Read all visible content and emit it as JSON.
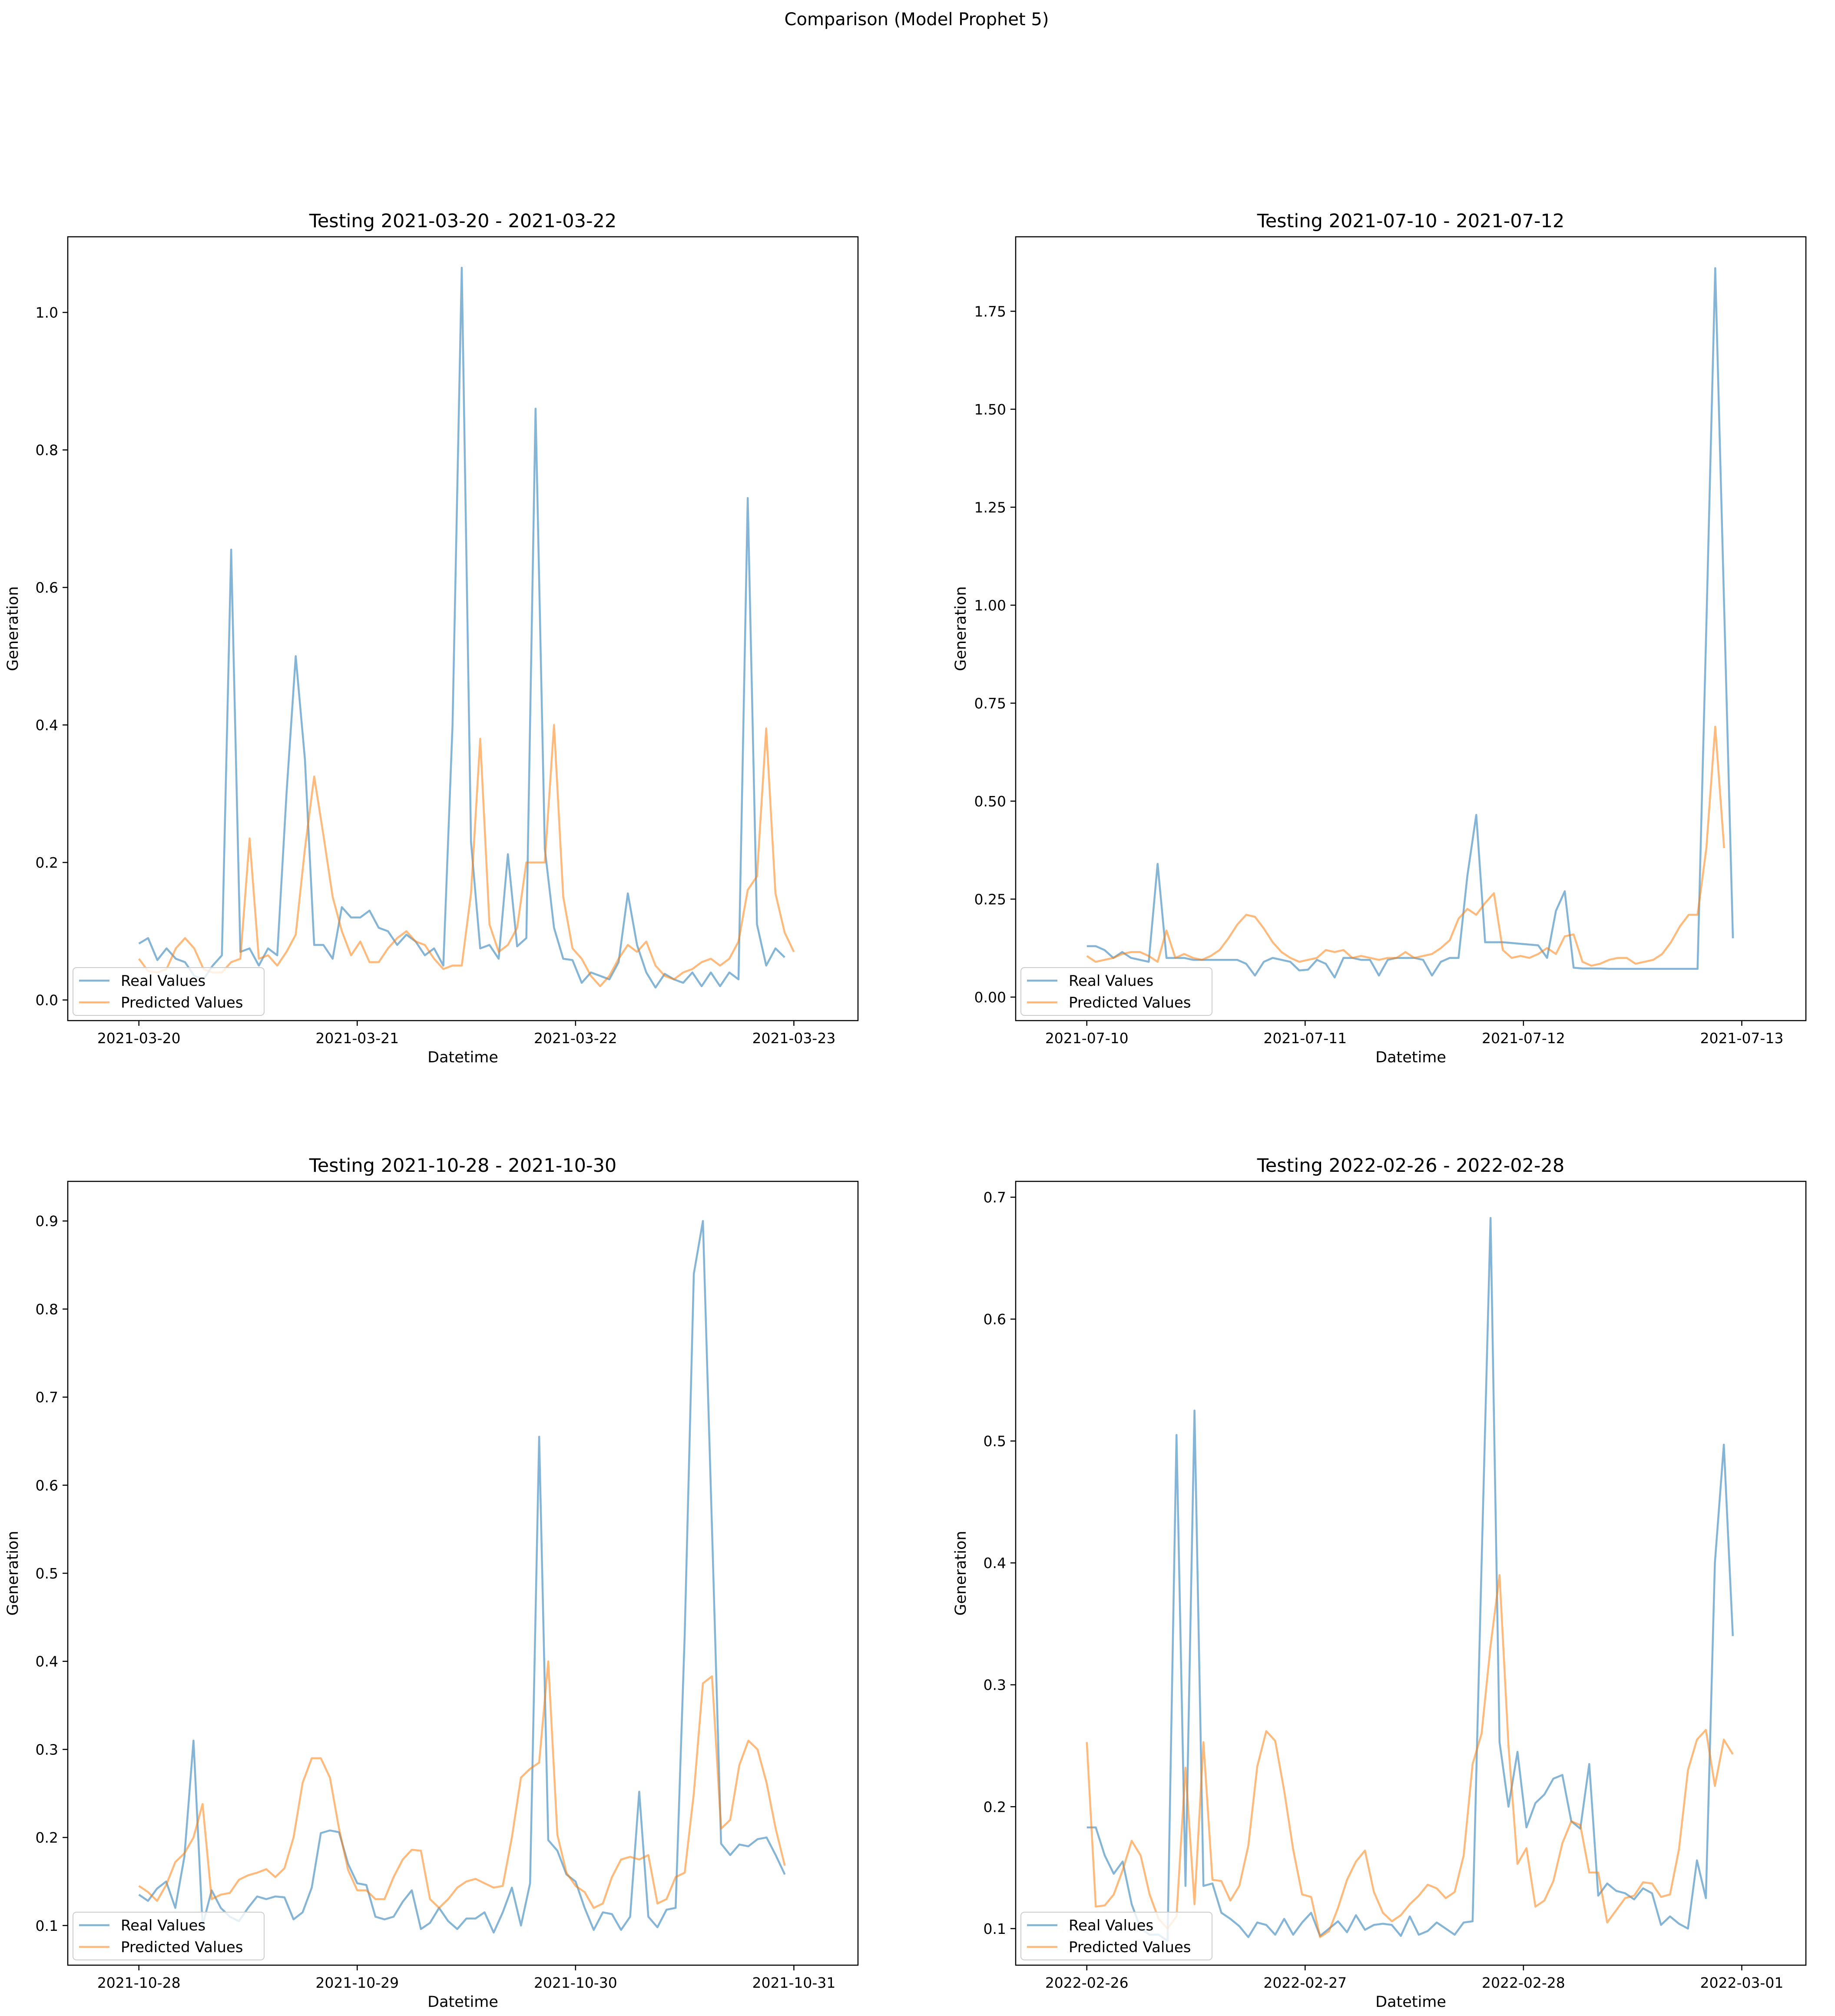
{
  "figure": {
    "suptitle": "Comparison (Model Prophet 5)",
    "colors": {
      "real": "#1f77b4",
      "predicted": "#ff7f0e"
    }
  },
  "chart_data": [
    {
      "type": "line",
      "title": "Testing 2021-03-20 - 2021-03-22",
      "xlabel": "Datetime",
      "ylabel": "Generation",
      "x_start": "2021-03-20",
      "x_end": "2021-03-23",
      "xticks": [
        "2021-03-20",
        "2021-03-21",
        "2021-03-22",
        "2021-03-23"
      ],
      "ylim": [
        -0.03,
        1.11
      ],
      "yticks": [
        "0.0",
        "0.2",
        "0.4",
        "0.6",
        "0.8",
        "1.0"
      ],
      "grid": false,
      "legend": "lower-left",
      "legend_entries": [
        "Real Values",
        "Predicted Values"
      ],
      "series": [
        {
          "name": "Real Values",
          "values": [
            0.082,
            0.09,
            0.058,
            0.075,
            0.06,
            0.055,
            0.035,
            0.03,
            0.05,
            0.065,
            0.655,
            0.07,
            0.075,
            0.05,
            0.075,
            0.065,
            0.3,
            0.5,
            0.35,
            0.08,
            0.08,
            0.06,
            0.135,
            0.12,
            0.12,
            0.13,
            0.105,
            0.1,
            0.08,
            0.095,
            0.085,
            0.065,
            0.075,
            0.05,
            0.4,
            1.065,
            0.23,
            0.075,
            0.08,
            0.06,
            0.212,
            0.078,
            0.09,
            0.86,
            0.22,
            0.105,
            0.06,
            0.058,
            0.025,
            0.04,
            0.035,
            0.03,
            0.055,
            0.155,
            0.08,
            0.04,
            0.018,
            0.038,
            0.03,
            0.025,
            0.04,
            0.02,
            0.04,
            0.02,
            0.04,
            0.03,
            0.73,
            0.11,
            0.05,
            0.075,
            0.062
          ]
        },
        {
          "name": "Predicted Values",
          "values": [
            0.06,
            0.042,
            0.04,
            0.045,
            0.075,
            0.09,
            0.075,
            0.045,
            0.04,
            0.04,
            0.055,
            0.06,
            0.235,
            0.06,
            0.065,
            0.05,
            0.07,
            0.095,
            0.22,
            0.325,
            0.24,
            0.15,
            0.1,
            0.065,
            0.085,
            0.055,
            0.055,
            0.075,
            0.09,
            0.1,
            0.085,
            0.08,
            0.06,
            0.045,
            0.05,
            0.05,
            0.155,
            0.38,
            0.11,
            0.07,
            0.08,
            0.105,
            0.2,
            0.2,
            0.2,
            0.4,
            0.15,
            0.075,
            0.06,
            0.035,
            0.02,
            0.035,
            0.06,
            0.08,
            0.07,
            0.085,
            0.05,
            0.035,
            0.03,
            0.04,
            0.045,
            0.055,
            0.06,
            0.05,
            0.06,
            0.085,
            0.16,
            0.18,
            0.395,
            0.155,
            0.098,
            0.07
          ]
        }
      ]
    },
    {
      "type": "line",
      "title": "Testing 2021-07-10 - 2021-07-12",
      "xlabel": "Datetime",
      "ylabel": "Generation",
      "x_start": "2021-07-10",
      "x_end": "2021-07-13",
      "xticks": [
        "2021-07-10",
        "2021-07-11",
        "2021-07-12",
        "2021-07-13"
      ],
      "ylim": [
        -0.06,
        1.94
      ],
      "yticks": [
        "0.00",
        "0.25",
        "0.50",
        "0.75",
        "1.00",
        "1.25",
        "1.50",
        "1.75"
      ],
      "grid": false,
      "legend": "lower-left",
      "legend_entries": [
        "Real Values",
        "Predicted Values"
      ],
      "series": [
        {
          "name": "Real Values",
          "values": [
            0.13,
            0.13,
            0.12,
            0.1,
            0.115,
            0.1,
            0.095,
            0.09,
            0.34,
            0.1,
            0.1,
            0.1,
            0.095,
            0.095,
            0.095,
            0.095,
            0.095,
            0.095,
            0.085,
            0.055,
            0.09,
            0.1,
            0.095,
            0.09,
            0.068,
            0.07,
            0.095,
            0.085,
            0.05,
            0.1,
            0.1,
            0.095,
            0.095,
            0.055,
            0.095,
            0.1,
            0.1,
            0.1,
            0.095,
            0.055,
            0.09,
            0.1,
            0.1,
            0.31,
            0.465,
            0.14,
            0.14,
            0.14,
            0.138,
            0.136,
            0.134,
            0.132,
            0.1,
            0.22,
            0.27,
            0.075,
            0.073,
            0.073,
            0.073,
            0.072,
            0.072,
            0.072,
            0.072,
            0.072,
            0.072,
            0.072,
            0.072,
            0.072,
            0.072,
            0.072,
            0.95,
            1.86,
            1.0,
            0.15
          ]
        },
        {
          "name": "Predicted Values",
          "values": [
            0.105,
            0.09,
            0.095,
            0.1,
            0.11,
            0.115,
            0.115,
            0.105,
            0.09,
            0.17,
            0.1,
            0.11,
            0.1,
            0.095,
            0.105,
            0.12,
            0.15,
            0.185,
            0.21,
            0.205,
            0.175,
            0.14,
            0.115,
            0.1,
            0.09,
            0.095,
            0.1,
            0.12,
            0.115,
            0.12,
            0.1,
            0.105,
            0.1,
            0.095,
            0.1,
            0.1,
            0.115,
            0.1,
            0.105,
            0.11,
            0.125,
            0.145,
            0.2,
            0.225,
            0.21,
            0.24,
            0.265,
            0.12,
            0.1,
            0.105,
            0.1,
            0.11,
            0.125,
            0.11,
            0.155,
            0.16,
            0.09,
            0.08,
            0.085,
            0.095,
            0.1,
            0.1,
            0.085,
            0.09,
            0.095,
            0.11,
            0.14,
            0.18,
            0.21,
            0.21,
            0.38,
            0.69,
            0.38
          ]
        }
      ]
    },
    {
      "type": "line",
      "title": "Testing 2021-10-28 - 2021-10-30",
      "xlabel": "Datetime",
      "ylabel": "Generation",
      "x_start": "2021-10-28",
      "x_end": "2021-10-31",
      "xticks": [
        "2021-10-28",
        "2021-10-29",
        "2021-10-30",
        "2021-10-31"
      ],
      "ylim": [
        0.055,
        0.945
      ],
      "yticks": [
        "0.1",
        "0.2",
        "0.3",
        "0.4",
        "0.5",
        "0.6",
        "0.7",
        "0.8",
        "0.9"
      ],
      "grid": false,
      "legend": "lower-left",
      "legend_entries": [
        "Real Values",
        "Predicted Values"
      ],
      "series": [
        {
          "name": "Real Values",
          "values": [
            0.135,
            0.128,
            0.142,
            0.15,
            0.12,
            0.178,
            0.31,
            0.1,
            0.14,
            0.12,
            0.11,
            0.105,
            0.12,
            0.133,
            0.13,
            0.133,
            0.132,
            0.107,
            0.115,
            0.143,
            0.205,
            0.208,
            0.206,
            0.17,
            0.148,
            0.146,
            0.11,
            0.107,
            0.11,
            0.127,
            0.14,
            0.096,
            0.103,
            0.12,
            0.105,
            0.096,
            0.108,
            0.108,
            0.115,
            0.092,
            0.115,
            0.143,
            0.1,
            0.148,
            0.655,
            0.197,
            0.185,
            0.158,
            0.15,
            0.12,
            0.095,
            0.115,
            0.113,
            0.095,
            0.11,
            0.252,
            0.11,
            0.098,
            0.118,
            0.12,
            0.43,
            0.84,
            0.9,
            0.55,
            0.193,
            0.18,
            0.192,
            0.19,
            0.198,
            0.2,
            0.18,
            0.158
          ]
        },
        {
          "name": "Predicted Values",
          "values": [
            0.145,
            0.138,
            0.128,
            0.146,
            0.172,
            0.182,
            0.2,
            0.238,
            0.13,
            0.135,
            0.137,
            0.152,
            0.157,
            0.16,
            0.164,
            0.155,
            0.165,
            0.2,
            0.262,
            0.29,
            0.29,
            0.268,
            0.21,
            0.163,
            0.14,
            0.14,
            0.13,
            0.13,
            0.155,
            0.175,
            0.186,
            0.185,
            0.13,
            0.12,
            0.13,
            0.143,
            0.15,
            0.153,
            0.148,
            0.143,
            0.145,
            0.2,
            0.268,
            0.278,
            0.285,
            0.4,
            0.203,
            0.16,
            0.145,
            0.138,
            0.12,
            0.125,
            0.155,
            0.175,
            0.178,
            0.175,
            0.18,
            0.125,
            0.13,
            0.155,
            0.16,
            0.25,
            0.375,
            0.383,
            0.21,
            0.22,
            0.282,
            0.31,
            0.3,
            0.262,
            0.21,
            0.168
          ]
        }
      ]
    },
    {
      "type": "line",
      "title": "Testing 2022-02-26 - 2022-02-28",
      "xlabel": "Datetime",
      "ylabel": "Generation",
      "x_start": "2022-02-26",
      "x_end": "2022-03-01",
      "xticks": [
        "2022-02-26",
        "2022-02-27",
        "2022-02-28",
        "2022-03-01"
      ],
      "ylim": [
        0.07,
        0.713
      ],
      "yticks": [
        "0.1",
        "0.2",
        "0.3",
        "0.4",
        "0.5",
        "0.6",
        "0.7"
      ],
      "grid": false,
      "legend": "lower-left",
      "legend_entries": [
        "Real Values",
        "Predicted Values"
      ],
      "series": [
        {
          "name": "Real Values",
          "values": [
            0.183,
            0.183,
            0.16,
            0.145,
            0.155,
            0.12,
            0.1,
            0.095,
            0.095,
            0.09,
            0.505,
            0.135,
            0.525,
            0.135,
            0.137,
            0.113,
            0.108,
            0.102,
            0.093,
            0.105,
            0.103,
            0.095,
            0.108,
            0.095,
            0.105,
            0.113,
            0.094,
            0.1,
            0.106,
            0.097,
            0.111,
            0.099,
            0.103,
            0.104,
            0.103,
            0.094,
            0.11,
            0.095,
            0.098,
            0.105,
            0.1,
            0.095,
            0.105,
            0.106,
            0.4,
            0.683,
            0.253,
            0.2,
            0.245,
            0.183,
            0.203,
            0.21,
            0.223,
            0.226,
            0.188,
            0.182,
            0.235,
            0.127,
            0.137,
            0.131,
            0.129,
            0.124,
            0.133,
            0.129,
            0.103,
            0.11,
            0.104,
            0.1,
            0.156,
            0.125,
            0.4,
            0.497,
            0.34
          ]
        },
        {
          "name": "Predicted Values",
          "values": [
            0.253,
            0.118,
            0.119,
            0.128,
            0.148,
            0.172,
            0.16,
            0.128,
            0.108,
            0.1,
            0.11,
            0.232,
            0.12,
            0.253,
            0.14,
            0.139,
            0.123,
            0.135,
            0.168,
            0.233,
            0.262,
            0.254,
            0.213,
            0.165,
            0.128,
            0.126,
            0.093,
            0.098,
            0.117,
            0.14,
            0.155,
            0.164,
            0.13,
            0.113,
            0.106,
            0.111,
            0.12,
            0.127,
            0.136,
            0.133,
            0.125,
            0.13,
            0.16,
            0.235,
            0.26,
            0.332,
            0.39,
            0.25,
            0.153,
            0.166,
            0.118,
            0.123,
            0.139,
            0.17,
            0.188,
            0.185,
            0.146,
            0.146,
            0.105,
            0.115,
            0.125,
            0.127,
            0.138,
            0.137,
            0.126,
            0.128,
            0.165,
            0.23,
            0.255,
            0.263,
            0.217,
            0.255,
            0.243
          ]
        }
      ]
    }
  ]
}
